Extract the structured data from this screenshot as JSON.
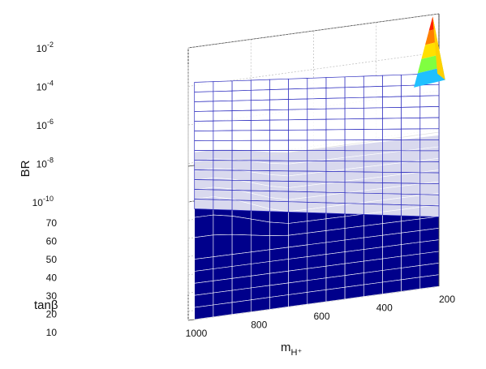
{
  "chart_data": {
    "type": "surface3d",
    "xlabel": "tanβ",
    "ylabel": "m",
    "ylabel_sub": "H⁺",
    "zlabel": "BR",
    "xlim": [
      5,
      70
    ],
    "ylim": [
      200,
      1000
    ],
    "zlim_log10": [
      -10,
      -2
    ],
    "z_scale": "log",
    "grid": true,
    "x_ticks": [
      "10",
      "20",
      "30",
      "40",
      "50",
      "60",
      "70"
    ],
    "x_tick_values": [
      10,
      20,
      30,
      40,
      50,
      60,
      70
    ],
    "y_ticks": [
      "200",
      "400",
      "600",
      "800",
      "1000"
    ],
    "y_tick_values": [
      200,
      400,
      600,
      800,
      1000
    ],
    "z_ticks": [
      {
        "base": "10",
        "exp": "-10"
      },
      {
        "base": "10",
        "exp": "-8"
      },
      {
        "base": "10",
        "exp": "-6"
      },
      {
        "base": "10",
        "exp": "-4"
      },
      {
        "base": "10",
        "exp": "-2"
      }
    ],
    "z_tick_values_log10": [
      -10,
      -8,
      -6,
      -4,
      -2
    ],
    "tanb_grid": [
      5,
      10,
      15,
      20,
      25,
      30,
      35,
      40,
      45,
      50,
      55,
      60,
      65,
      70
    ],
    "mH_grid": [
      200,
      260,
      320,
      380,
      440,
      500,
      560,
      620,
      680,
      740,
      800,
      860,
      920,
      980
    ],
    "series": [
      {
        "style": "wireframe",
        "color": "#3030c0",
        "log10_BR_at_corners": {
          "tanb5_m200": -6.4,
          "tanb70_m200": -5.1,
          "tanb5_m1000": -4.2,
          "tanb70_m1000": -3.8
        },
        "peak": {
          "tanb": 70,
          "mH": 220,
          "log10_BR": -2.1
        }
      },
      {
        "style": "solid",
        "color": "#00008b",
        "log10_BR_at_corners": {
          "tanb5_m200": -10.0,
          "tanb70_m200": -8.3,
          "tanb5_m1000": -10.0,
          "tanb70_m1000": -8.0
        },
        "kink": {
          "tanb": 45,
          "mH": 900,
          "log10_BR": -7.4
        }
      }
    ]
  }
}
